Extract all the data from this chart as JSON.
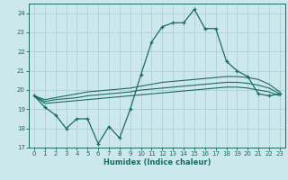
{
  "xlabel": "Humidex (Indice chaleur)",
  "background_color": "#cce8ec",
  "grid_color": "#aed0d6",
  "line_color": "#1a6b60",
  "x_main": [
    0,
    1,
    2,
    3,
    4,
    5,
    6,
    7,
    8,
    9,
    10,
    11,
    12,
    13,
    14,
    15,
    16,
    17,
    18,
    19,
    20,
    21,
    22,
    23
  ],
  "y_main": [
    19.7,
    19.1,
    18.7,
    18.0,
    18.5,
    18.5,
    17.2,
    18.1,
    17.5,
    19.0,
    20.8,
    22.5,
    23.3,
    23.5,
    23.5,
    24.2,
    23.2,
    23.2,
    21.5,
    21.0,
    20.7,
    19.8,
    19.7,
    19.8
  ],
  "y_line_top": [
    19.7,
    19.5,
    19.6,
    19.7,
    19.8,
    19.9,
    19.95,
    20.0,
    20.05,
    20.1,
    20.2,
    20.3,
    20.4,
    20.45,
    20.5,
    20.55,
    20.6,
    20.65,
    20.7,
    20.7,
    20.65,
    20.55,
    20.3,
    19.9
  ],
  "y_line_mid": [
    19.7,
    19.4,
    19.5,
    19.55,
    19.6,
    19.7,
    19.75,
    19.8,
    19.85,
    19.9,
    20.0,
    20.05,
    20.1,
    20.15,
    20.2,
    20.25,
    20.3,
    20.35,
    20.4,
    20.4,
    20.35,
    20.25,
    20.1,
    19.8
  ],
  "y_line_bot": [
    19.7,
    19.3,
    19.35,
    19.4,
    19.45,
    19.5,
    19.55,
    19.6,
    19.65,
    19.7,
    19.75,
    19.8,
    19.85,
    19.9,
    19.95,
    20.0,
    20.05,
    20.1,
    20.15,
    20.15,
    20.1,
    20.0,
    19.9,
    19.7
  ],
  "ylim": [
    17,
    24.5
  ],
  "xlim": [
    -0.5,
    23.5
  ],
  "yticks": [
    17,
    18,
    19,
    20,
    21,
    22,
    23,
    24
  ],
  "xticks": [
    0,
    1,
    2,
    3,
    4,
    5,
    6,
    7,
    8,
    9,
    10,
    11,
    12,
    13,
    14,
    15,
    16,
    17,
    18,
    19,
    20,
    21,
    22,
    23
  ]
}
